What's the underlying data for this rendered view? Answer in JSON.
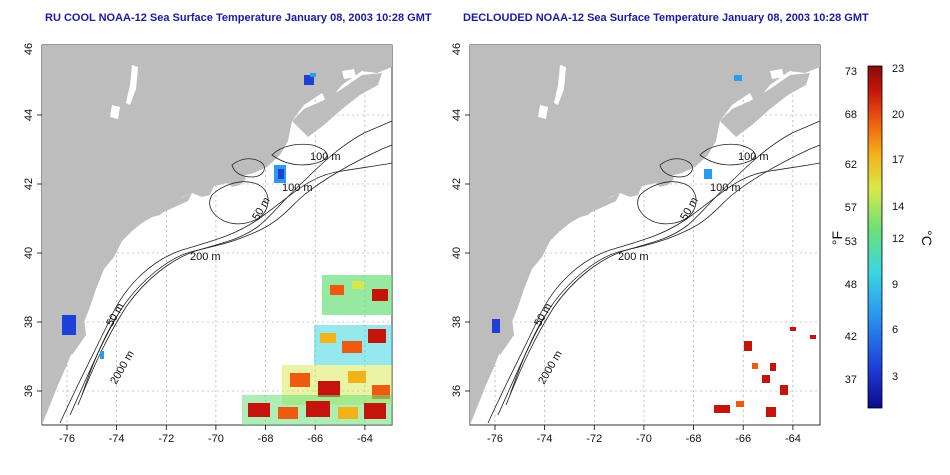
{
  "titles": {
    "left": "RU COOL NOAA-12 Sea Surface Temperature January 08, 2003 10:28 GMT",
    "right": "DECLOUDED NOAA-12 Sea Surface Temperature January 08, 2003 10:28 GMT"
  },
  "map": {
    "lon_range": [
      -77,
      -63
    ],
    "lat_range": [
      35,
      46
    ],
    "lon_ticks": [
      "-76",
      "-74",
      "-72",
      "-70",
      "-68",
      "-66",
      "-64"
    ],
    "lat_ticks": [
      "36",
      "38",
      "40",
      "42",
      "44",
      "46"
    ],
    "land_color": "#bdbdbd",
    "ocean_color": "#ffffff",
    "grid": true
  },
  "isobath_labels": {
    "left": [
      "100 m",
      "100 m",
      "50 m",
      "200 m",
      "50 m",
      "2000 m"
    ],
    "right": [
      "100 m",
      "100 m",
      "50 m",
      "200 m",
      "50 m",
      "2000 m"
    ]
  },
  "colorbar": {
    "f_ticks": [
      "73",
      "68",
      "62",
      "57",
      "53",
      "48",
      "42",
      "37"
    ],
    "c_ticks": [
      "23",
      "20",
      "17",
      "14",
      "12",
      "9",
      "6",
      "3"
    ],
    "f_label": "°F",
    "c_label": "°C",
    "colors": [
      "#0a0a8c",
      "#1f3fd9",
      "#2a9bf0",
      "#3cd6e0",
      "#6be07a",
      "#d8e84a",
      "#f4b21a",
      "#ee5a10",
      "#c4140c",
      "#8a0a0a"
    ]
  }
}
